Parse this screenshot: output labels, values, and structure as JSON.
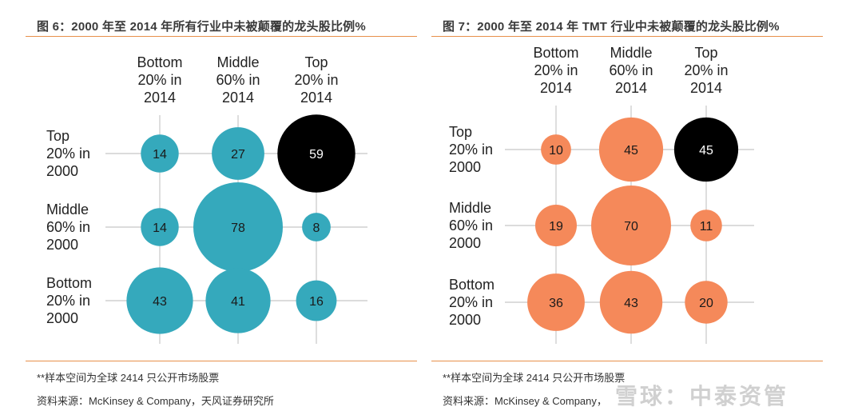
{
  "panels": [
    {
      "title": "图 6：2000 年至 2014 年所有行业中未被颠覆的龙头股比例%",
      "note": "**样本空间为全球 2414 只公开市场股票",
      "source": "资料来源：McKinsey & Company，天风证券研究所"
    },
    {
      "title": "图 7：2000 年至 2014 年 TMT 行业中未被颠覆的龙头股比例%",
      "note": "**样本空间为全球 2414 只公开市场股票",
      "source": "资料来源：McKinsey & Company，"
    }
  ],
  "watermark": "雪球：中泰资管",
  "chart_data": [
    {
      "type": "bubble-matrix",
      "title": "图 6：2000 年至 2014 年所有行业中未被颠覆的龙头股比例%",
      "columns": [
        [
          "Bottom",
          "20% in",
          "2014"
        ],
        [
          "Middle",
          "60% in",
          "2014"
        ],
        [
          "Top",
          "20% in",
          "2014"
        ]
      ],
      "rows": [
        [
          "Top",
          "20% in",
          "2000"
        ],
        [
          "Middle",
          "60% in",
          "2000"
        ],
        [
          "Bottom",
          "20% in",
          "2000"
        ]
      ],
      "values": [
        [
          14,
          27,
          59
        ],
        [
          14,
          78,
          8
        ],
        [
          43,
          41,
          16
        ]
      ],
      "bubble_color": "#35a9bc",
      "highlight_color": "#000000",
      "highlight_cell": [
        0,
        2
      ]
    },
    {
      "type": "bubble-matrix",
      "title": "图 7：2000 年至 2014 年 TMT 行业中未被颠覆的龙头股比例%",
      "columns": [
        [
          "Bottom",
          "20% in",
          "2014"
        ],
        [
          "Middle",
          "60% in",
          "2014"
        ],
        [
          "Top",
          "20% in",
          "2014"
        ]
      ],
      "rows": [
        [
          "Top",
          "20% in",
          "2000"
        ],
        [
          "Middle",
          "60% in",
          "2000"
        ],
        [
          "Bottom",
          "20% in",
          "2000"
        ]
      ],
      "values": [
        [
          10,
          45,
          45
        ],
        [
          19,
          70,
          11
        ],
        [
          36,
          43,
          20
        ]
      ],
      "bubble_color": "#f5895a",
      "highlight_color": "#000000",
      "highlight_cell": [
        0,
        2
      ]
    }
  ]
}
